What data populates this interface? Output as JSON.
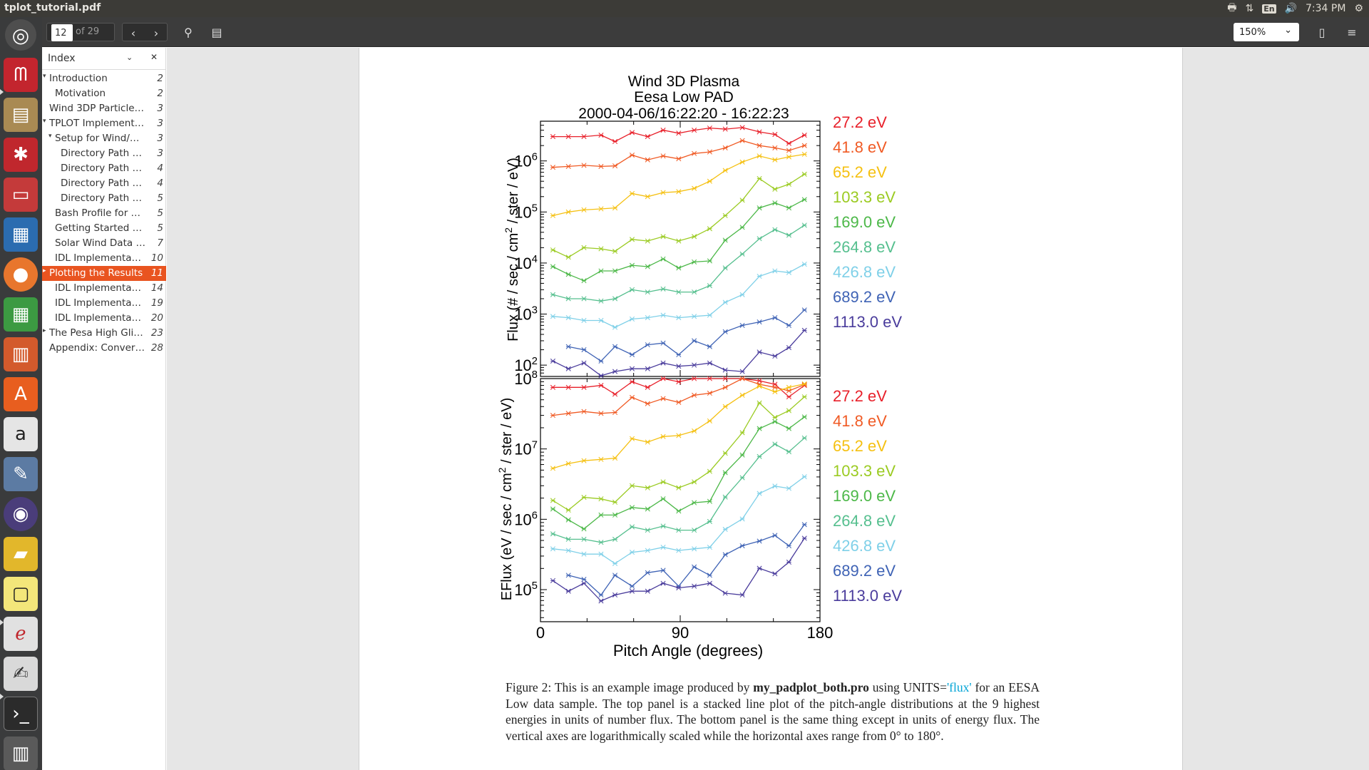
{
  "window": {
    "title": "tplot_tutorial.pdf"
  },
  "tray": {
    "lang": "En",
    "time": "7:34 PM"
  },
  "toolbar": {
    "page_number": "12",
    "page_of": "of 29",
    "zoom": "150%"
  },
  "sidebar": {
    "header": "Index",
    "items": [
      {
        "label": "Introduction",
        "page": "2",
        "level": 0,
        "arrow": "down"
      },
      {
        "label": "Motivation",
        "page": "2",
        "level": 1,
        "arrow": ""
      },
      {
        "label": "Wind 3DP Particle…",
        "page": "3",
        "level": 0,
        "arrow": ""
      },
      {
        "label": "TPLOT Implement…",
        "page": "3",
        "level": 0,
        "arrow": "down"
      },
      {
        "label": "Setup for Wind/…",
        "page": "3",
        "level": 1,
        "arrow": "down"
      },
      {
        "label": "Directory Path …",
        "page": "3",
        "level": 2,
        "arrow": ""
      },
      {
        "label": "Directory Path …",
        "page": "4",
        "level": 2,
        "arrow": ""
      },
      {
        "label": "Directory Path …",
        "page": "4",
        "level": 2,
        "arrow": ""
      },
      {
        "label": "Directory Path …",
        "page": "5",
        "level": 2,
        "arrow": ""
      },
      {
        "label": "Bash Profile for …",
        "page": "5",
        "level": 1,
        "arrow": ""
      },
      {
        "label": "Getting Started …",
        "page": "5",
        "level": 1,
        "arrow": ""
      },
      {
        "label": "Solar Wind Data …",
        "page": "7",
        "level": 1,
        "arrow": ""
      },
      {
        "label": "IDL Implementa…",
        "page": "10",
        "level": 1,
        "arrow": ""
      },
      {
        "label": "Plotting the Results",
        "page": "11",
        "level": 0,
        "arrow": "right",
        "selected": true
      },
      {
        "label": "IDL Implementa…",
        "page": "14",
        "level": 1,
        "arrow": ""
      },
      {
        "label": "IDL Implementa…",
        "page": "19",
        "level": 1,
        "arrow": ""
      },
      {
        "label": "IDL Implementa…",
        "page": "20",
        "level": 1,
        "arrow": ""
      },
      {
        "label": "The Pesa High Gli…",
        "page": "23",
        "level": 0,
        "arrow": "right"
      },
      {
        "label": "Appendix: Conver…",
        "page": "28",
        "level": 0,
        "arrow": ""
      }
    ]
  },
  "caption": {
    "prefix": "Figure 2: This is an example image produced by ",
    "prog": "my_padplot_both.pro",
    "mid": " using UNITS=",
    "units": "'flux'",
    "rest": " for an EESA Low data sample. The top panel is a stacked line plot of the pitch-angle distributions at the 9 highest energies in units of number flux. The bottom panel is the same thing except in units of energy flux. The vertical axes are logarithmically scaled while the horizontal axes range from 0° to 180°."
  },
  "chart_data": [
    {
      "type": "line",
      "title": "Wind 3D Plasma",
      "subtitle": "Eesa Low PAD",
      "time_range": "2000-04-06/16:22:20 - 16:22:23",
      "xlabel": "",
      "ylabel": "Flux (# / sec / cm^2 / ster / eV)",
      "xlim": [
        0,
        180
      ],
      "ylim": [
        60,
        6000000
      ],
      "log_y": true,
      "yticks": [
        100,
        1000,
        10000,
        100000,
        1000000
      ],
      "ytick_labels": [
        "10^2",
        "10^3",
        "10^4",
        "10^5",
        "10^6"
      ],
      "x": [
        8,
        18,
        28,
        39,
        48,
        59,
        69,
        79,
        89,
        99,
        109,
        119,
        130,
        141,
        151,
        160,
        170
      ],
      "series": [
        {
          "name": "27.2 eV",
          "color": "#e8202a",
          "values": [
            3000000,
            3000000,
            3000000,
            3200000,
            2400000,
            3600000,
            3000000,
            4000000,
            3500000,
            4000000,
            4400000,
            4200000,
            4500000,
            3700000,
            3300000,
            2200000,
            3200000
          ]
        },
        {
          "name": "41.8 eV",
          "color": "#f05a24",
          "values": [
            750000,
            780000,
            820000,
            780000,
            800000,
            1300000,
            1050000,
            1250000,
            1100000,
            1400000,
            1500000,
            1800000,
            2500000,
            2000000,
            1800000,
            1600000,
            2000000
          ]
        },
        {
          "name": "65.2 eV",
          "color": "#f5c011",
          "values": [
            85000,
            100000,
            110000,
            115000,
            120000,
            230000,
            200000,
            240000,
            250000,
            290000,
            400000,
            650000,
            950000,
            1250000,
            1050000,
            1200000,
            1350000
          ]
        },
        {
          "name": "103.3 eV",
          "color": "#9bcb22",
          "values": [
            18000,
            13000,
            20000,
            19000,
            17000,
            29000,
            27000,
            33000,
            27000,
            33000,
            47000,
            85000,
            170000,
            450000,
            280000,
            350000,
            550000
          ]
        },
        {
          "name": "169.0 eV",
          "color": "#4cb848",
          "values": [
            8500,
            6000,
            4500,
            7000,
            7000,
            9000,
            8500,
            12000,
            8000,
            10500,
            11000,
            28000,
            50000,
            120000,
            150000,
            120000,
            175000
          ]
        },
        {
          "name": "264.8 eV",
          "color": "#55bf8e",
          "values": [
            2400,
            2000,
            2000,
            1800,
            2000,
            3000,
            2700,
            3100,
            2700,
            2700,
            3600,
            8000,
            15000,
            30000,
            45000,
            35000,
            55000
          ]
        },
        {
          "name": "426.8 eV",
          "color": "#7fd0e8",
          "values": [
            900,
            850,
            750,
            750,
            550,
            800,
            850,
            950,
            850,
            900,
            950,
            1700,
            2400,
            5500,
            7000,
            6500,
            9500
          ]
        },
        {
          "name": "689.2 eV",
          "color": "#3f63b5",
          "values": [
            0,
            230,
            200,
            120,
            230,
            160,
            250,
            270,
            160,
            300,
            230,
            450,
            600,
            700,
            850,
            600,
            1200
          ]
        },
        {
          "name": "1113.0 eV",
          "color": "#4a3c9c",
          "values": [
            120,
            85,
            110,
            62,
            75,
            85,
            85,
            110,
            95,
            100,
            110,
            80,
            75,
            180,
            150,
            220,
            480
          ]
        }
      ]
    },
    {
      "type": "line",
      "title": "",
      "xlabel": "Pitch Angle  (degrees)",
      "ylabel": "EFlux (eV / sec / cm^2 / ster / eV)",
      "xlim": [
        0,
        180
      ],
      "ylim": [
        35000,
        100000000
      ],
      "log_y": true,
      "yticks": [
        100000,
        1000000,
        10000000,
        100000000
      ],
      "ytick_labels": [
        "10^5",
        "10^6",
        "10^7",
        "10^8"
      ],
      "xticks": [
        0,
        90,
        180
      ],
      "xtick_labels": [
        "0",
        "90",
        "180"
      ],
      "x": [
        8,
        18,
        28,
        39,
        48,
        59,
        69,
        79,
        89,
        99,
        109,
        119,
        130,
        141,
        151,
        160,
        170
      ],
      "series": [
        {
          "name": "27.2 eV",
          "color": "#e8202a",
          "values": [
            75000000,
            75000000,
            75000000,
            80000000,
            60000000,
            90000000,
            75000000,
            100000000,
            90000000,
            100000000,
            110000000,
            105000000,
            112000000,
            93000000,
            83000000,
            55000000,
            80000000
          ]
        },
        {
          "name": "41.8 eV",
          "color": "#f05a24",
          "values": [
            30000000,
            32000000,
            34000000,
            32000000,
            33000000,
            54000000,
            44000000,
            52000000,
            46000000,
            58000000,
            62000000,
            75000000,
            100000000,
            83000000,
            75000000,
            67000000,
            82000000
          ]
        },
        {
          "name": "65.2 eV",
          "color": "#f5c011",
          "values": [
            5300000,
            6200000,
            6800000,
            7100000,
            7400000,
            14000000,
            12500000,
            15000000,
            15500000,
            18000000,
            25000000,
            40000000,
            58000000,
            78000000,
            65000000,
            75000000,
            84000000
          ]
        },
        {
          "name": "103.3 eV",
          "color": "#9bcb22",
          "values": [
            1850000,
            1350000,
            2050000,
            1950000,
            1750000,
            3000000,
            2800000,
            3400000,
            2800000,
            3400000,
            4800000,
            8700000,
            17000000,
            45000000,
            28000000,
            35000000,
            55000000
          ]
        },
        {
          "name": "169.0 eV",
          "color": "#4cb848",
          "values": [
            1400000,
            980000,
            730000,
            1150000,
            1150000,
            1470000,
            1400000,
            1950000,
            1310000,
            1720000,
            1800000,
            4600000,
            8200000,
            19500000,
            24500000,
            19500000,
            28500000
          ]
        },
        {
          "name": "264.8 eV",
          "color": "#55bf8e",
          "values": [
            620000,
            520000,
            520000,
            470000,
            520000,
            780000,
            700000,
            800000,
            700000,
            700000,
            930000,
            2070000,
            3900000,
            7800000,
            11700000,
            9100000,
            14300000
          ]
        },
        {
          "name": "426.8 eV",
          "color": "#7fd0e8",
          "values": [
            380000,
            360000,
            320000,
            320000,
            235000,
            340000,
            360000,
            400000,
            360000,
            380000,
            400000,
            720000,
            1010000,
            2330000,
            2960000,
            2750000,
            4020000
          ]
        },
        {
          "name": "689.2 eV",
          "color": "#3f63b5",
          "values": [
            0,
            160000,
            140000,
            84000,
            160000,
            112000,
            174000,
            188000,
            112000,
            210000,
            160000,
            314000,
            420000,
            490000,
            590000,
            420000,
            840000
          ]
        },
        {
          "name": "1113.0 eV",
          "color": "#4a3c9c",
          "values": [
            134000,
            95000,
            123000,
            69000,
            84000,
            95000,
            95000,
            123000,
            106000,
            112000,
            123000,
            89000,
            84000,
            201000,
            168000,
            246000,
            537000
          ]
        }
      ]
    }
  ]
}
